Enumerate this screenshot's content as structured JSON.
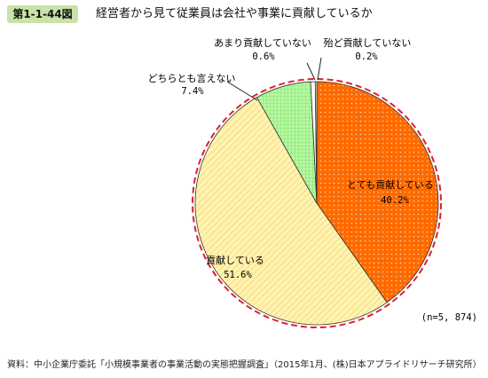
{
  "header": {
    "figure_label": "第1-1-44図",
    "title": "経営者から見て従業員は会社や事業に貢献しているか"
  },
  "chart_data": {
    "type": "pie",
    "title": "経営者から見て従業員は会社や事業に貢献しているか",
    "n_label": "(n=5, 874)",
    "slices": [
      {
        "label": "とても貢献している",
        "value": 40.2,
        "value_label": "40.2%",
        "color": "#ff6a00",
        "pattern": "dots"
      },
      {
        "label": "貢献している",
        "value": 51.6,
        "value_label": "51.6%",
        "color": "#fff3b0",
        "pattern": "hatch"
      },
      {
        "label": "どちらとも言えない",
        "value": 7.4,
        "value_label": "7.4%",
        "color": "#b7f7a3",
        "pattern": "grid"
      },
      {
        "label": "あまり貢献していない",
        "value": 0.6,
        "value_label": "0.6%",
        "color": "#ffffff",
        "pattern": "none"
      },
      {
        "label": "殆ど貢献していない",
        "value": 0.2,
        "value_label": "0.2%",
        "color": "#ffffff",
        "pattern": "none"
      }
    ]
  },
  "footer": {
    "source": "資料：中小企業庁委託「小規模事業者の事業活動の実態把握調査」（2015年1月、(株)日本アプライドリサーチ研究所）"
  }
}
